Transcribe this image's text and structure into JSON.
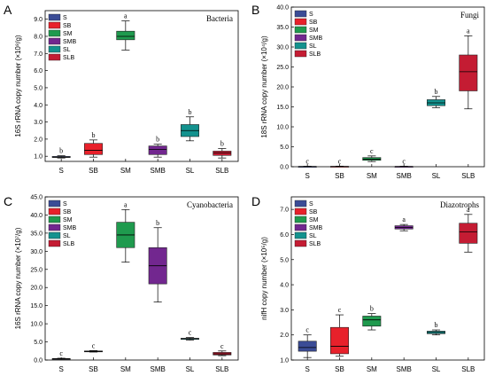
{
  "categories": [
    "S",
    "SB",
    "SM",
    "SMB",
    "SL",
    "SLB"
  ],
  "legend_labels": [
    "S",
    "SB",
    "SM",
    "SMB",
    "SL",
    "SLB"
  ],
  "colors": {
    "S": "#3b4c96",
    "SB": "#e8212b",
    "SM": "#1f9a4e",
    "SMB": "#72278f",
    "SL": "#13928e",
    "SLB": "#c41c33"
  },
  "chart_data": [
    {
      "type": "box",
      "panel_label": "A",
      "title": "Bacteria",
      "ylabel": "16S rRNA copy number (×10⁸/g)",
      "ylim": [
        0.7,
        9.5
      ],
      "yticks": [
        1.0,
        2.0,
        3.0,
        4.0,
        5.0,
        6.0,
        7.0,
        8.0,
        9.0
      ],
      "tick_format": "1dp",
      "categories": [
        "S",
        "SB",
        "SM",
        "SMB",
        "SL",
        "SLB"
      ],
      "boxes": [
        {
          "name": "S",
          "min": 0.9,
          "q1": 0.93,
          "median": 0.95,
          "q3": 0.99,
          "max": 1.03,
          "letter": "b"
        },
        {
          "name": "SB",
          "min": 0.95,
          "q1": 1.1,
          "median": 1.35,
          "q3": 1.75,
          "max": 1.95,
          "letter": "b"
        },
        {
          "name": "SM",
          "min": 7.2,
          "q1": 7.8,
          "median": 8.0,
          "q3": 8.3,
          "max": 8.9,
          "letter": "a"
        },
        {
          "name": "SMB",
          "min": 0.95,
          "q1": 1.1,
          "median": 1.4,
          "q3": 1.6,
          "max": 1.7,
          "letter": "b"
        },
        {
          "name": "SL",
          "min": 1.9,
          "q1": 2.15,
          "median": 2.5,
          "q3": 2.85,
          "max": 3.3,
          "letter": "b"
        },
        {
          "name": "SLB",
          "min": 0.9,
          "q1": 1.05,
          "median": 1.2,
          "q3": 1.3,
          "max": 1.45,
          "letter": "b"
        }
      ]
    },
    {
      "type": "box",
      "panel_label": "B",
      "title": "Fungi",
      "ylabel": "18S rRNA copy number (×10⁴/g)",
      "ylim": [
        0,
        40
      ],
      "yticks": [
        0,
        5,
        10,
        15,
        20,
        25,
        30,
        35,
        40
      ],
      "tick_format": "1dp",
      "categories": [
        "S",
        "SB",
        "SM",
        "SMB",
        "SL",
        "SLB"
      ],
      "boxes": [
        {
          "name": "S",
          "min": 0.0,
          "q1": 0.02,
          "median": 0.05,
          "q3": 0.08,
          "max": 0.12,
          "letter": "c"
        },
        {
          "name": "SB",
          "min": 0.0,
          "q1": 0.03,
          "median": 0.06,
          "q3": 0.1,
          "max": 0.15,
          "letter": "c"
        },
        {
          "name": "SM",
          "min": 1.3,
          "q1": 1.6,
          "median": 1.9,
          "q3": 2.3,
          "max": 2.7,
          "letter": "c"
        },
        {
          "name": "SMB",
          "min": 0.0,
          "q1": 0.02,
          "median": 0.05,
          "q3": 0.08,
          "max": 0.12,
          "letter": "c"
        },
        {
          "name": "SL",
          "min": 14.8,
          "q1": 15.3,
          "median": 16.0,
          "q3": 16.8,
          "max": 17.6,
          "letter": "b"
        },
        {
          "name": "SLB",
          "min": 14.5,
          "q1": 19.0,
          "median": 23.8,
          "q3": 28.0,
          "max": 32.8,
          "letter": "a"
        }
      ]
    },
    {
      "type": "box",
      "panel_label": "C",
      "title": "Cyanobacteria",
      "ylabel": "16S rRNA copy number (×10⁷/g)",
      "ylim": [
        0,
        45
      ],
      "yticks": [
        0,
        5,
        10,
        15,
        20,
        25,
        30,
        35,
        40,
        45
      ],
      "tick_format": "1dp",
      "categories": [
        "S",
        "SB",
        "SM",
        "SMB",
        "SL",
        "SLB"
      ],
      "boxes": [
        {
          "name": "S",
          "min": 0.2,
          "q1": 0.3,
          "median": 0.35,
          "q3": 0.4,
          "max": 0.5,
          "letter": "c"
        },
        {
          "name": "SB",
          "min": 2.2,
          "q1": 2.3,
          "median": 2.4,
          "q3": 2.5,
          "max": 2.6,
          "letter": "c"
        },
        {
          "name": "SM",
          "min": 27.0,
          "q1": 31.0,
          "median": 34.5,
          "q3": 38.0,
          "max": 41.5,
          "letter": "a"
        },
        {
          "name": "SMB",
          "min": 16.0,
          "q1": 21.0,
          "median": 26.0,
          "q3": 31.0,
          "max": 36.5,
          "letter": "b"
        },
        {
          "name": "SL",
          "min": 5.5,
          "q1": 5.7,
          "median": 5.9,
          "q3": 6.0,
          "max": 6.2,
          "letter": "c"
        },
        {
          "name": "SLB",
          "min": 1.2,
          "q1": 1.4,
          "median": 1.7,
          "q3": 2.1,
          "max": 2.5,
          "letter": "c"
        }
      ]
    },
    {
      "type": "box",
      "panel_label": "D",
      "title": "Diazotrophs",
      "ylabel": "nifH copy number (×10⁵/g)",
      "ylim": [
        1.0,
        7.5
      ],
      "yticks": [
        1.0,
        2.0,
        3.0,
        4.0,
        5.0,
        6.0,
        7.0
      ],
      "tick_format": "1dp",
      "categories": [
        "S",
        "SB",
        "SM",
        "SMB",
        "SL",
        "SLB"
      ],
      "boxes": [
        {
          "name": "S",
          "min": 1.1,
          "q1": 1.35,
          "median": 1.5,
          "q3": 1.75,
          "max": 2.0,
          "letter": "c"
        },
        {
          "name": "SB",
          "min": 1.15,
          "q1": 1.25,
          "median": 1.55,
          "q3": 2.3,
          "max": 2.8,
          "letter": "c"
        },
        {
          "name": "SM",
          "min": 2.2,
          "q1": 2.35,
          "median": 2.6,
          "q3": 2.75,
          "max": 2.85,
          "letter": "b"
        },
        {
          "name": "SMB",
          "min": 6.15,
          "q1": 6.22,
          "median": 6.28,
          "q3": 6.35,
          "max": 6.4,
          "letter": "a"
        },
        {
          "name": "SL",
          "min": 2.0,
          "q1": 2.05,
          "median": 2.1,
          "q3": 2.15,
          "max": 2.2,
          "letter": "b"
        },
        {
          "name": "SLB",
          "min": 5.3,
          "q1": 5.65,
          "median": 6.1,
          "q3": 6.45,
          "max": 6.8,
          "letter": "a"
        }
      ]
    }
  ]
}
